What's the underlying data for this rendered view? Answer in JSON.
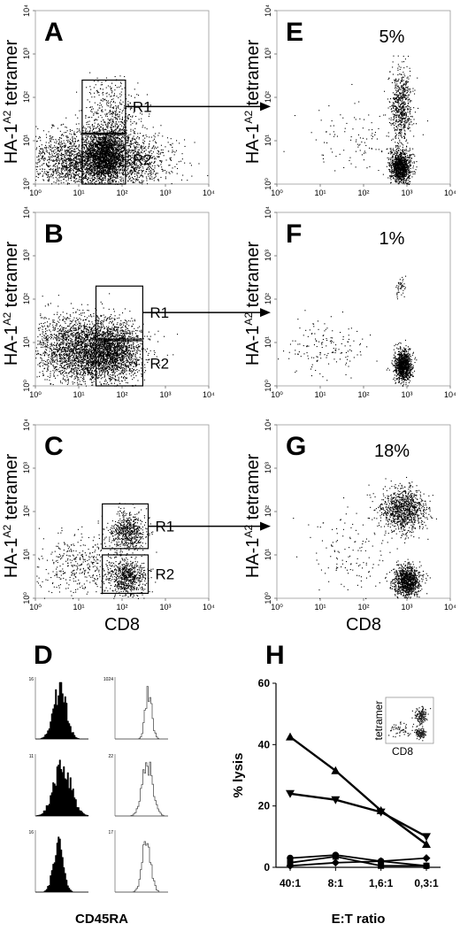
{
  "chart_data": [
    {
      "panel": "A",
      "type": "scatter",
      "xlabel": "",
      "ylabel": "HA-1A2 tetramer",
      "x_ticks": [
        "10⁰",
        "10¹",
        "10²",
        "10³",
        "10⁴"
      ],
      "y_ticks": [
        "10⁰",
        "10¹",
        "10²",
        "10³",
        "10⁴"
      ],
      "x_scale": "log",
      "y_scale": "log",
      "xlim": [
        1,
        10000
      ],
      "ylim": [
        1,
        10000
      ],
      "gates": [
        {
          "label": "R1",
          "x": [
            12,
            120
          ],
          "y": [
            15,
            250
          ]
        },
        {
          "label": "R2",
          "x": [
            12,
            120
          ],
          "y": [
            1,
            14
          ]
        }
      ],
      "populations": [
        {
          "cx": 25,
          "cy": 3.5,
          "sx": 0.75,
          "sy": 0.35,
          "n": 3200
        },
        {
          "cx": 40,
          "cy": 5,
          "sx": 0.2,
          "sy": 0.25,
          "n": 1400
        },
        {
          "cx": 60,
          "cy": 40,
          "sx": 0.3,
          "sy": 0.4,
          "n": 450
        }
      ]
    },
    {
      "panel": "E",
      "type": "scatter",
      "xlabel": "",
      "ylabel": "HA-1A2 tetramer",
      "x_ticks": [
        "10⁰",
        "10¹",
        "10²",
        "10³",
        "10⁴"
      ],
      "y_ticks": [
        "10⁰",
        "10¹",
        "10²",
        "10³",
        "10⁴"
      ],
      "x_scale": "log",
      "y_scale": "log",
      "xlim": [
        1,
        10000
      ],
      "ylim": [
        1,
        10000
      ],
      "annotation": "5%",
      "populations": [
        {
          "cx": 700,
          "cy": 2.5,
          "sx": 0.12,
          "sy": 0.18,
          "n": 1100
        },
        {
          "cx": 700,
          "cy": 60,
          "sx": 0.12,
          "sy": 0.45,
          "n": 650
        },
        {
          "cx": 60,
          "cy": 10,
          "sx": 0.6,
          "sy": 0.5,
          "n": 110
        }
      ]
    },
    {
      "panel": "B",
      "type": "scatter",
      "xlabel": "",
      "ylabel": "HA-1A2 tetramer",
      "x_ticks": [
        "10⁰",
        "10¹",
        "10²",
        "10³",
        "10⁴"
      ],
      "y_ticks": [
        "10⁰",
        "10¹",
        "10²",
        "10³",
        "10⁴"
      ],
      "x_scale": "log",
      "y_scale": "log",
      "xlim": [
        1,
        10000
      ],
      "ylim": [
        1,
        10000
      ],
      "gates": [
        {
          "label": "R1",
          "x": [
            25,
            300
          ],
          "y": [
            12,
            200
          ]
        },
        {
          "label": "R2",
          "x": [
            25,
            300
          ],
          "y": [
            1,
            11
          ]
        }
      ],
      "populations": [
        {
          "cx": 12,
          "cy": 7,
          "sx": 0.55,
          "sy": 0.4,
          "n": 2600
        },
        {
          "cx": 60,
          "cy": 6,
          "sx": 0.35,
          "sy": 0.3,
          "n": 1400
        }
      ]
    },
    {
      "panel": "F",
      "type": "scatter",
      "xlabel": "",
      "ylabel": "HA-1A2 tetramer",
      "x_ticks": [
        "10⁰",
        "10¹",
        "10²",
        "10³",
        "10⁴"
      ],
      "y_ticks": [
        "10⁰",
        "10¹",
        "10²",
        "10³",
        "10⁴"
      ],
      "x_scale": "log",
      "y_scale": "log",
      "xlim": [
        1,
        10000
      ],
      "ylim": [
        1,
        10000
      ],
      "annotation": "1%",
      "populations": [
        {
          "cx": 800,
          "cy": 3,
          "sx": 0.1,
          "sy": 0.18,
          "n": 1000
        },
        {
          "cx": 700,
          "cy": 200,
          "sx": 0.06,
          "sy": 0.12,
          "n": 45
        },
        {
          "cx": 12,
          "cy": 8,
          "sx": 0.45,
          "sy": 0.3,
          "n": 150
        }
      ]
    },
    {
      "panel": "C",
      "type": "scatter",
      "xlabel": "CD8",
      "ylabel": "HA-1A2 tetramer",
      "x_ticks": [
        "10⁰",
        "10¹",
        "10²",
        "10³",
        "10⁴"
      ],
      "y_ticks": [
        "10⁰",
        "10¹",
        "10²",
        "10³",
        "10⁴"
      ],
      "x_scale": "log",
      "y_scale": "log",
      "xlim": [
        1,
        10000
      ],
      "ylim": [
        1,
        10000
      ],
      "gates": [
        {
          "label": "R1",
          "x": [
            35,
            400
          ],
          "y": [
            14,
            150
          ]
        },
        {
          "label": "R2",
          "x": [
            35,
            400
          ],
          "y": [
            1.3,
            10
          ]
        }
      ],
      "populations": [
        {
          "cx": 130,
          "cy": 35,
          "sx": 0.2,
          "sy": 0.22,
          "n": 600
        },
        {
          "cx": 130,
          "cy": 3,
          "sx": 0.22,
          "sy": 0.2,
          "n": 650
        },
        {
          "cx": 12,
          "cy": 6,
          "sx": 0.55,
          "sy": 0.35,
          "n": 420
        }
      ]
    },
    {
      "panel": "G",
      "type": "scatter",
      "xlabel": "CD8",
      "ylabel": "HA-1A2 tetramer",
      "x_ticks": [
        "10⁰",
        "10¹",
        "10²",
        "10³",
        "10⁴"
      ],
      "y_ticks": [
        "10⁰",
        "10¹",
        "10²",
        "10³",
        "10⁴"
      ],
      "x_scale": "log",
      "y_scale": "log",
      "xlim": [
        1,
        10000
      ],
      "ylim": [
        1,
        10000
      ],
      "annotation": "18%",
      "populations": [
        {
          "cx": 800,
          "cy": 110,
          "sx": 0.25,
          "sy": 0.25,
          "n": 1000
        },
        {
          "cx": 1000,
          "cy": 2.5,
          "sx": 0.15,
          "sy": 0.18,
          "n": 1000
        },
        {
          "cx": 60,
          "cy": 12,
          "sx": 0.55,
          "sy": 0.5,
          "n": 140
        }
      ]
    },
    {
      "panel": "D",
      "type": "histogram",
      "xlabel": "CD45RA",
      "rows": [
        {
          "filled_max": "16",
          "outline_max": "1024"
        },
        {
          "filled_max": "11",
          "outline_max": "22"
        },
        {
          "filled_max": "16",
          "outline_max": "17"
        }
      ]
    },
    {
      "panel": "H",
      "type": "line",
      "categories": [
        "40:1",
        "8:1",
        "1,6:1",
        "0,3:1"
      ],
      "xlabel": "E:T ratio",
      "ylabel": "% lysis",
      "ylim": [
        0,
        60
      ],
      "y_ticks": [
        0,
        20,
        40,
        60
      ],
      "series": [
        {
          "marker": "triangle-up",
          "values": [
            42.5,
            31.5,
            18.5,
            7.5
          ]
        },
        {
          "marker": "triangle-down",
          "values": [
            24,
            22,
            18,
            10
          ]
        },
        {
          "marker": "circle",
          "values": [
            3,
            4,
            2,
            0.5
          ]
        },
        {
          "marker": "square",
          "values": [
            1.5,
            3.5,
            0.5,
            0.5
          ]
        },
        {
          "marker": "diamond",
          "values": [
            0.5,
            1.5,
            2,
            3
          ]
        }
      ],
      "inset": {
        "xlabel": "CD8",
        "ylabel": "tetramer"
      }
    }
  ]
}
